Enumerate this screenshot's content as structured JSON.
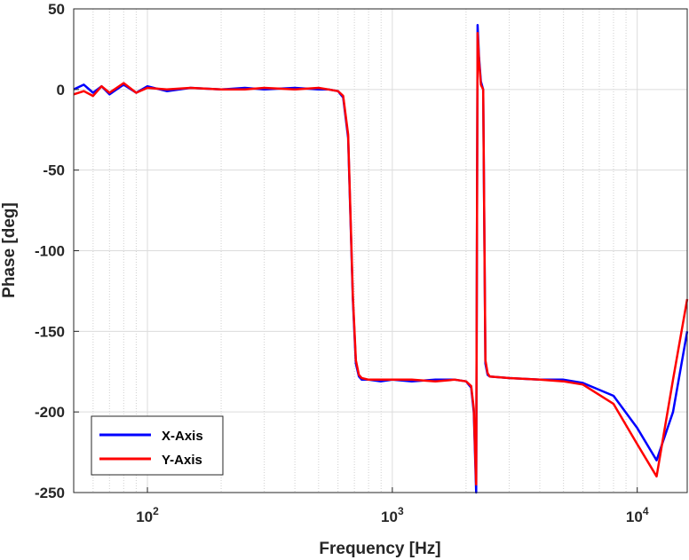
{
  "chart_data": {
    "type": "line",
    "xlabel": "Frequency [Hz]",
    "ylabel": "Phase [deg]",
    "xscale": "log",
    "xlim": [
      50,
      16000
    ],
    "ylim": [
      -250,
      50
    ],
    "y_ticks": [
      50,
      0,
      -50,
      -100,
      -150,
      -200,
      -250
    ],
    "x_ticks": [
      {
        "value": 100,
        "base": "10",
        "exp": "2"
      },
      {
        "value": 1000,
        "base": "10",
        "exp": "3"
      },
      {
        "value": 10000,
        "base": "10",
        "exp": "4"
      }
    ],
    "grid": true,
    "minor_grid": true,
    "legend_position": "bottom-left",
    "series": [
      {
        "name": "X-Axis",
        "color": "#0000ff",
        "x": [
          50,
          55,
          60,
          65,
          70,
          80,
          90,
          100,
          120,
          150,
          200,
          250,
          300,
          400,
          500,
          550,
          600,
          630,
          660,
          690,
          710,
          730,
          750,
          800,
          900,
          1000,
          1200,
          1500,
          1800,
          2000,
          2100,
          2150,
          2200,
          2230,
          2260,
          2300,
          2350,
          2400,
          2450,
          2500,
          3000,
          4000,
          5000,
          6000,
          8000,
          10000,
          12000,
          14000,
          16000
        ],
        "values": [
          0,
          3,
          -2,
          2,
          -3,
          3,
          -2,
          2,
          -1,
          1,
          0,
          1,
          0,
          1,
          0,
          0,
          -1,
          -5,
          -30,
          -130,
          -170,
          -178,
          -180,
          -180,
          -181,
          -180,
          -181,
          -180,
          -180,
          -181,
          -185,
          -200,
          -250,
          40,
          20,
          5,
          0,
          -170,
          -177,
          -178,
          -179,
          -180,
          -180,
          -182,
          -190,
          -210,
          -230,
          -200,
          -150
        ]
      },
      {
        "name": "Y-Axis",
        "color": "#ff0000",
        "x": [
          50,
          55,
          60,
          65,
          70,
          80,
          90,
          100,
          120,
          150,
          200,
          250,
          300,
          400,
          500,
          550,
          600,
          630,
          660,
          690,
          710,
          730,
          750,
          800,
          900,
          1000,
          1200,
          1500,
          1800,
          2000,
          2100,
          2150,
          2200,
          2230,
          2260,
          2300,
          2350,
          2400,
          2450,
          2500,
          3000,
          4000,
          5000,
          6000,
          8000,
          10000,
          12000,
          14000,
          16000
        ],
        "values": [
          -3,
          -1,
          -4,
          2,
          -2,
          4,
          -2,
          1,
          0,
          1,
          0,
          0,
          1,
          0,
          1,
          0,
          -1,
          -4,
          -28,
          -128,
          -168,
          -177,
          -179,
          -180,
          -180,
          -180,
          -180,
          -181,
          -180,
          -181,
          -184,
          -198,
          -245,
          35,
          18,
          3,
          0,
          -168,
          -176,
          -178,
          -179,
          -180,
          -181,
          -183,
          -195,
          -220,
          -240,
          -180,
          -130
        ]
      }
    ]
  }
}
